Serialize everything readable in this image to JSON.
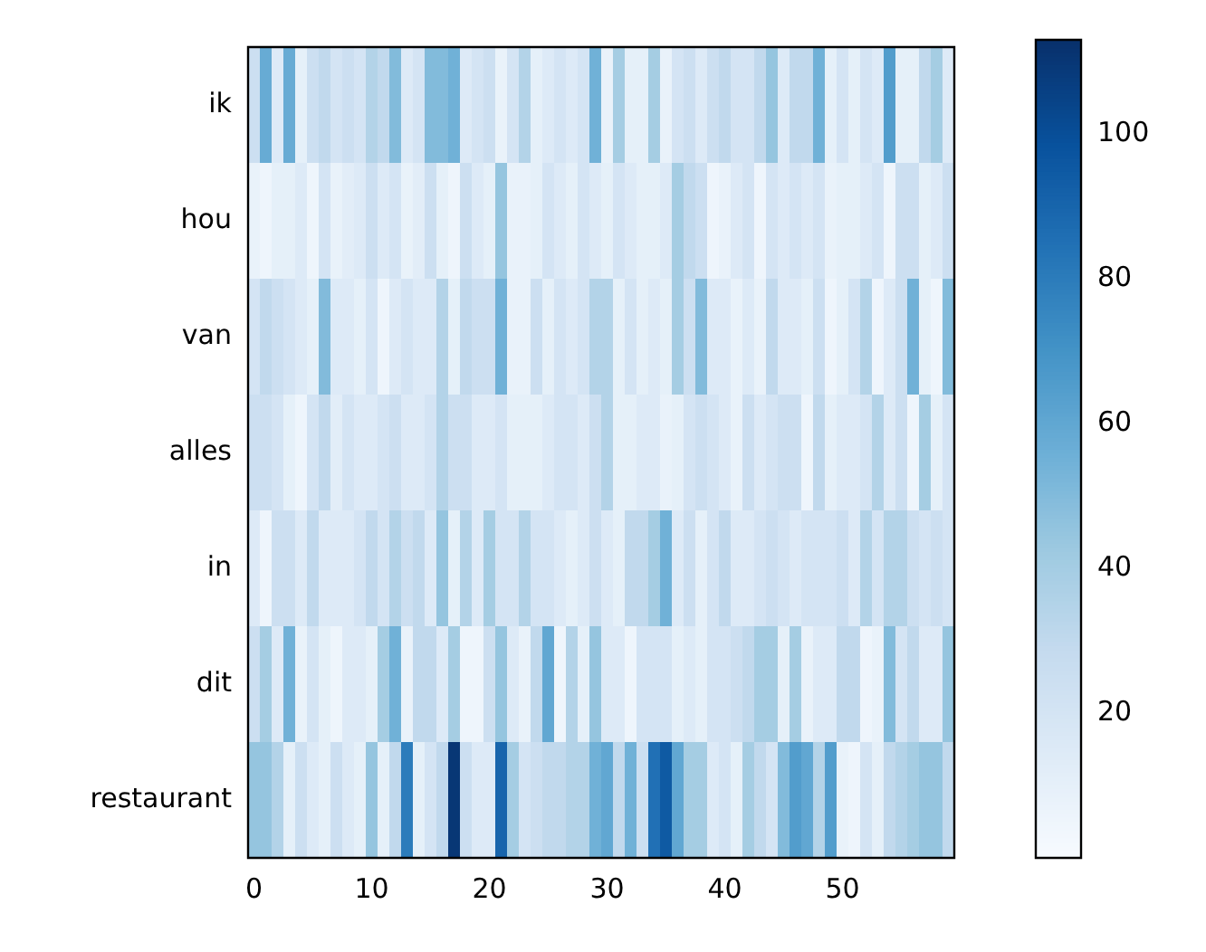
{
  "chart_data": {
    "type": "heatmap",
    "x": [
      0,
      1,
      2,
      3,
      4,
      5,
      6,
      7,
      8,
      9,
      10,
      11,
      12,
      13,
      14,
      15,
      16,
      17,
      18,
      19,
      20,
      21,
      22,
      23,
      24,
      25,
      26,
      27,
      28,
      29,
      30,
      31,
      32,
      33,
      34,
      35,
      36,
      37,
      38,
      39,
      40,
      41,
      42,
      43,
      44,
      45,
      46,
      47,
      48,
      49,
      50,
      51,
      52,
      53,
      54,
      55,
      56,
      57,
      58,
      59
    ],
    "xlim": [
      -0.5,
      59.5
    ],
    "xticks": [
      0,
      10,
      20,
      30,
      40,
      50
    ],
    "y_categories": [
      "ik",
      "hou",
      "van",
      "alles",
      "in",
      "dit",
      "restaurant"
    ],
    "cells": [
      [
        25,
        58,
        15,
        58,
        10,
        25,
        30,
        20,
        25,
        20,
        35,
        30,
        50,
        15,
        20,
        50,
        50,
        55,
        15,
        20,
        25,
        8,
        20,
        35,
        10,
        15,
        20,
        15,
        20,
        55,
        8,
        40,
        10,
        10,
        40,
        8,
        20,
        25,
        15,
        25,
        30,
        20,
        20,
        30,
        45,
        15,
        30,
        30,
        55,
        10,
        20,
        10,
        20,
        15,
        65,
        10,
        10,
        30,
        40,
        15
      ],
      [
        8,
        5,
        10,
        10,
        15,
        5,
        20,
        8,
        12,
        15,
        25,
        15,
        20,
        8,
        12,
        25,
        10,
        5,
        25,
        15,
        10,
        45,
        8,
        8,
        10,
        20,
        15,
        10,
        20,
        15,
        10,
        20,
        15,
        10,
        10,
        15,
        40,
        30,
        25,
        5,
        8,
        15,
        20,
        5,
        20,
        15,
        20,
        15,
        20,
        8,
        10,
        10,
        15,
        20,
        5,
        25,
        25,
        10,
        15,
        25
      ],
      [
        20,
        30,
        25,
        20,
        15,
        10,
        50,
        15,
        15,
        10,
        20,
        5,
        15,
        20,
        15,
        15,
        35,
        10,
        30,
        25,
        25,
        55,
        8,
        8,
        25,
        10,
        20,
        15,
        20,
        35,
        35,
        10,
        20,
        10,
        15,
        10,
        40,
        25,
        50,
        15,
        15,
        8,
        15,
        8,
        30,
        15,
        15,
        10,
        25,
        5,
        10,
        20,
        35,
        5,
        15,
        25,
        55,
        10,
        5,
        50
      ],
      [
        25,
        25,
        20,
        10,
        5,
        20,
        30,
        12,
        20,
        15,
        15,
        20,
        25,
        15,
        15,
        20,
        35,
        25,
        25,
        15,
        15,
        20,
        10,
        10,
        10,
        15,
        20,
        20,
        15,
        25,
        35,
        10,
        10,
        15,
        15,
        8,
        10,
        20,
        25,
        20,
        15,
        8,
        25,
        15,
        20,
        25,
        25,
        5,
        30,
        10,
        15,
        15,
        20,
        35,
        15,
        25,
        5,
        40,
        10,
        20
      ],
      [
        15,
        5,
        25,
        25,
        15,
        30,
        15,
        15,
        15,
        20,
        30,
        20,
        35,
        25,
        30,
        15,
        45,
        10,
        35,
        15,
        40,
        20,
        20,
        35,
        20,
        20,
        15,
        10,
        15,
        25,
        15,
        10,
        30,
        30,
        40,
        55,
        15,
        25,
        10,
        20,
        30,
        15,
        15,
        20,
        25,
        20,
        15,
        20,
        20,
        20,
        25,
        15,
        35,
        20,
        35,
        35,
        25,
        20,
        25,
        20
      ],
      [
        25,
        40,
        15,
        55,
        8,
        20,
        10,
        5,
        15,
        15,
        10,
        40,
        55,
        8,
        30,
        30,
        15,
        40,
        5,
        5,
        25,
        45,
        15,
        8,
        30,
        60,
        5,
        35,
        10,
        45,
        15,
        15,
        5,
        20,
        20,
        20,
        10,
        15,
        10,
        20,
        20,
        25,
        30,
        40,
        40,
        10,
        40,
        8,
        15,
        15,
        30,
        30,
        5,
        8,
        50,
        20,
        30,
        15,
        15,
        45
      ],
      [
        45,
        45,
        35,
        10,
        25,
        15,
        10,
        25,
        15,
        10,
        45,
        10,
        30,
        80,
        10,
        20,
        30,
        110,
        25,
        15,
        15,
        90,
        40,
        20,
        25,
        30,
        30,
        35,
        35,
        55,
        60,
        30,
        55,
        25,
        85,
        95,
        60,
        40,
        40,
        15,
        20,
        10,
        40,
        30,
        20,
        50,
        65,
        60,
        35,
        65,
        8,
        5,
        20,
        10,
        30,
        35,
        40,
        45,
        45,
        30
      ]
    ],
    "clim": [
      0,
      113
    ],
    "cticks": [
      20,
      40,
      60,
      80,
      100
    ]
  }
}
